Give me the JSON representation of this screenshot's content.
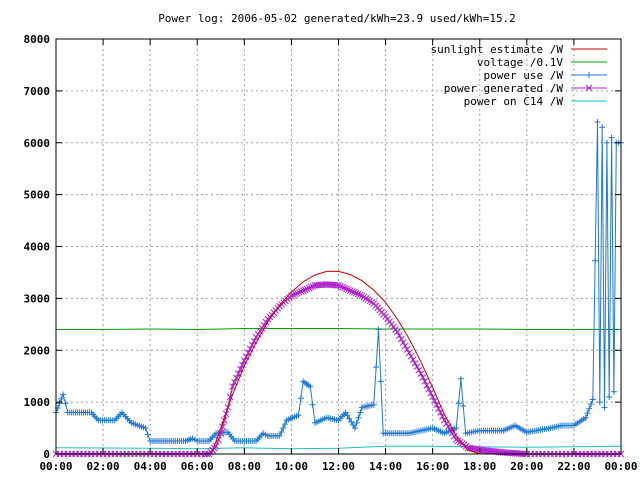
{
  "chart_data": {
    "type": "line",
    "title": "Power log: 2006-05-02 generated/kWh=23.9 used/kWh=15.2",
    "xlabel": "",
    "ylabel": "",
    "xlim": [
      0,
      24
    ],
    "ylim": [
      0,
      8000
    ],
    "grid": true,
    "legend_position": "top-right",
    "x_tick_labels": [
      "00:00",
      "02:00",
      "04:00",
      "06:00",
      "08:00",
      "10:00",
      "12:00",
      "14:00",
      "16:00",
      "18:00",
      "20:00",
      "22:00",
      "00:00"
    ],
    "y_tick_labels": [
      "0",
      "1000",
      "2000",
      "3000",
      "4000",
      "5000",
      "6000",
      "7000",
      "8000"
    ],
    "series": [
      {
        "name": "sunlight estimate /W",
        "color": "#cc0000",
        "marker": "none",
        "points": [
          [
            6.6,
            0
          ],
          [
            7.0,
            500
          ],
          [
            7.5,
            1150
          ],
          [
            8.0,
            1700
          ],
          [
            8.5,
            2150
          ],
          [
            9.0,
            2550
          ],
          [
            9.5,
            2870
          ],
          [
            10.0,
            3120
          ],
          [
            10.5,
            3320
          ],
          [
            11.0,
            3450
          ],
          [
            11.5,
            3520
          ],
          [
            12.0,
            3520
          ],
          [
            12.5,
            3460
          ],
          [
            13.0,
            3340
          ],
          [
            13.5,
            3160
          ],
          [
            14.0,
            2920
          ],
          [
            14.5,
            2600
          ],
          [
            15.0,
            2220
          ],
          [
            15.5,
            1780
          ],
          [
            16.0,
            1280
          ],
          [
            16.5,
            760
          ],
          [
            17.0,
            350
          ],
          [
            17.5,
            80
          ],
          [
            18.0,
            0
          ]
        ]
      },
      {
        "name": "voltage /0.1V",
        "color": "#00a000",
        "marker": "none",
        "points": [
          [
            0,
            2400
          ],
          [
            2,
            2400
          ],
          [
            4,
            2410
          ],
          [
            6,
            2400
          ],
          [
            7,
            2410
          ],
          [
            8,
            2420
          ],
          [
            10,
            2420
          ],
          [
            12,
            2420
          ],
          [
            14,
            2410
          ],
          [
            16,
            2410
          ],
          [
            18,
            2410
          ],
          [
            20,
            2400
          ],
          [
            22,
            2400
          ],
          [
            24,
            2400
          ]
        ]
      },
      {
        "name": "power use /W",
        "color": "#1f78d6",
        "marker": "plus",
        "points": [
          [
            0,
            800
          ],
          [
            0.3,
            1150
          ],
          [
            0.5,
            800
          ],
          [
            1.5,
            800
          ],
          [
            1.8,
            650
          ],
          [
            2.5,
            650
          ],
          [
            2.8,
            800
          ],
          [
            3.2,
            600
          ],
          [
            3.8,
            500
          ],
          [
            4.0,
            250
          ],
          [
            5.5,
            250
          ],
          [
            5.8,
            300
          ],
          [
            6.0,
            250
          ],
          [
            6.5,
            250
          ],
          [
            6.8,
            400
          ],
          [
            7.3,
            420
          ],
          [
            7.6,
            250
          ],
          [
            8.5,
            250
          ],
          [
            8.8,
            400
          ],
          [
            9.0,
            350
          ],
          [
            9.5,
            350
          ],
          [
            9.8,
            650
          ],
          [
            10.3,
            750
          ],
          [
            10.5,
            1400
          ],
          [
            10.8,
            1300
          ],
          [
            11.0,
            600
          ],
          [
            11.5,
            700
          ],
          [
            12.0,
            650
          ],
          [
            12.3,
            800
          ],
          [
            12.7,
            500
          ],
          [
            13.0,
            900
          ],
          [
            13.5,
            950
          ],
          [
            13.7,
            2400
          ],
          [
            13.9,
            400
          ],
          [
            15.0,
            400
          ],
          [
            16.0,
            500
          ],
          [
            16.5,
            400
          ],
          [
            17.0,
            500
          ],
          [
            17.2,
            1450
          ],
          [
            17.4,
            400
          ],
          [
            18.0,
            450
          ],
          [
            19.0,
            450
          ],
          [
            19.5,
            550
          ],
          [
            20.0,
            420
          ],
          [
            21.0,
            500
          ],
          [
            21.5,
            550
          ],
          [
            22.0,
            550
          ],
          [
            22.5,
            700
          ],
          [
            22.8,
            1050
          ],
          [
            23.0,
            6400
          ],
          [
            23.1,
            1000
          ],
          [
            23.2,
            6300
          ],
          [
            23.3,
            900
          ],
          [
            23.4,
            6000
          ],
          [
            23.5,
            1100
          ],
          [
            23.6,
            6100
          ],
          [
            23.7,
            1200
          ],
          [
            23.8,
            6000
          ],
          [
            24.0,
            6000
          ]
        ]
      },
      {
        "name": "power generated /W",
        "color": "#b020d0",
        "marker": "cross",
        "points": [
          [
            0,
            0
          ],
          [
            6.5,
            0
          ],
          [
            6.8,
            150
          ],
          [
            7.0,
            400
          ],
          [
            7.3,
            900
          ],
          [
            7.5,
            1300
          ],
          [
            8.0,
            1800
          ],
          [
            8.5,
            2250
          ],
          [
            9.0,
            2600
          ],
          [
            9.5,
            2850
          ],
          [
            10.0,
            3050
          ],
          [
            10.5,
            3150
          ],
          [
            11.0,
            3250
          ],
          [
            11.5,
            3270
          ],
          [
            12.0,
            3250
          ],
          [
            12.5,
            3150
          ],
          [
            13.0,
            3050
          ],
          [
            13.5,
            2900
          ],
          [
            14.0,
            2650
          ],
          [
            14.5,
            2350
          ],
          [
            15.0,
            1950
          ],
          [
            15.5,
            1550
          ],
          [
            16.0,
            1100
          ],
          [
            16.5,
            650
          ],
          [
            17.0,
            280
          ],
          [
            17.5,
            120
          ],
          [
            18.0,
            80
          ],
          [
            19.0,
            30
          ],
          [
            20.0,
            0
          ],
          [
            24.0,
            0
          ]
        ]
      },
      {
        "name": "power on C14 /W",
        "color": "#20c0c0",
        "marker": "none",
        "points": [
          [
            0,
            120
          ],
          [
            4,
            110
          ],
          [
            6,
            100
          ],
          [
            8,
            120
          ],
          [
            10,
            100
          ],
          [
            12,
            110
          ],
          [
            14,
            150
          ],
          [
            16,
            150
          ],
          [
            18,
            140
          ],
          [
            20,
            130
          ],
          [
            22,
            140
          ],
          [
            24,
            150
          ]
        ]
      }
    ]
  }
}
